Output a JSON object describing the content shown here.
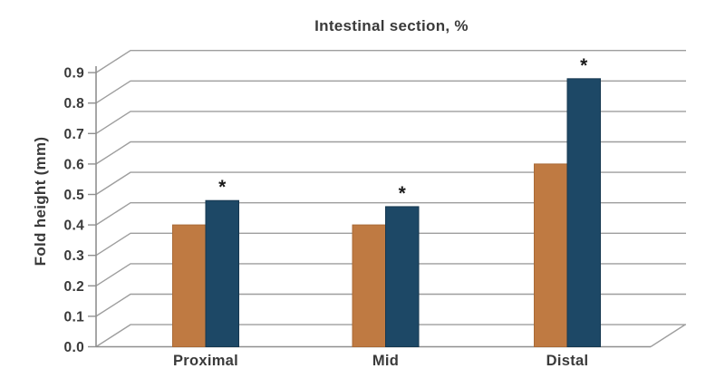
{
  "chart_data": {
    "type": "bar",
    "title": "Intestinal section, %",
    "xlabel": "",
    "ylabel": "Fold height (mm)",
    "categories": [
      "Proximal",
      "Mid",
      "Distal"
    ],
    "series": [
      {
        "name": "brown",
        "color": "#bf7a42",
        "values": [
          0.4,
          0.4,
          0.6
        ]
      },
      {
        "name": "blue",
        "color": "#1d4866",
        "values": [
          0.48,
          0.46,
          0.88
        ]
      }
    ],
    "annotations": [
      {
        "category": "Proximal",
        "series": "blue",
        "text": "*"
      },
      {
        "category": "Mid",
        "series": "blue",
        "text": "*"
      },
      {
        "category": "Distal",
        "series": "blue",
        "text": "*"
      }
    ],
    "ylim": [
      0.0,
      0.9
    ],
    "ytick_step": 0.1,
    "ytick_labels": [
      "0.0",
      "0.1",
      "0.2",
      "0.3",
      "0.4",
      "0.5",
      "0.6",
      "0.7",
      "0.8",
      "0.9"
    ],
    "grid": true,
    "legend": "none",
    "style": {
      "effect": "pseudo-3d-depth",
      "bar_border_brown": "#a96a37",
      "bar_border_blue": "#163850",
      "grid_color": "#9e9e9e",
      "axis_color": "#8f8f8f",
      "text_color": "#3a3a3a",
      "annotation_color": "#1a1a1a",
      "background": "#ffffff"
    }
  }
}
